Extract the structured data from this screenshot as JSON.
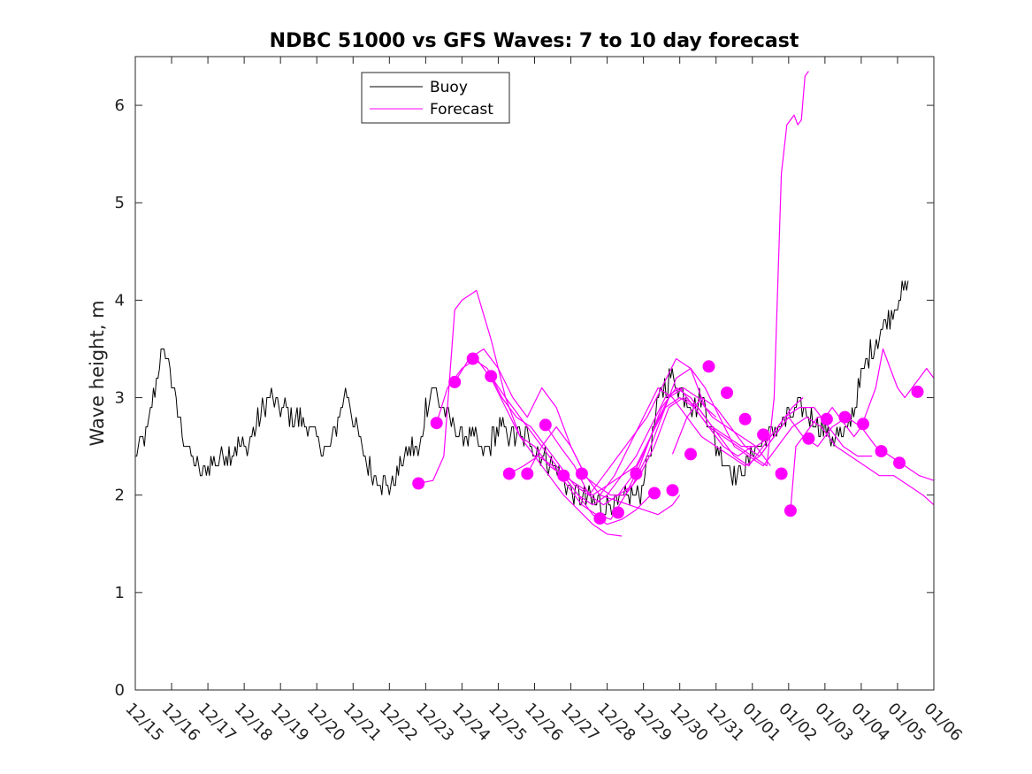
{
  "chart_data": {
    "type": "line",
    "title": "NDBC 51000 vs GFS Waves: 7 to 10 day forecast",
    "xlabel": "",
    "ylabel": "Wave height, m",
    "xlim": [
      0,
      22
    ],
    "ylim": [
      0,
      6.5
    ],
    "yticks": [
      0,
      1,
      2,
      3,
      4,
      5,
      6
    ],
    "xtick_labels": [
      "12/15",
      "12/16",
      "12/17",
      "12/18",
      "12/19",
      "12/20",
      "12/21",
      "12/22",
      "12/23",
      "12/24",
      "12/25",
      "12/26",
      "12/27",
      "12/28",
      "12/29",
      "12/30",
      "12/31",
      "01/01",
      "01/02",
      "01/03",
      "01/04",
      "01/05",
      "01/06"
    ],
    "legend": {
      "position": "top-center",
      "entries": [
        {
          "label": "Buoy",
          "color": "#000000"
        },
        {
          "label": "Forecast",
          "color": "#ff00ff"
        }
      ]
    },
    "buoy": {
      "name": "Buoy",
      "color": "#000000",
      "noise_amplitude": 0.12,
      "x": [
        0,
        0.3,
        0.5,
        0.7,
        0.85,
        1.0,
        1.2,
        1.5,
        1.8,
        2.0,
        2.4,
        2.8,
        3.1,
        3.4,
        3.7,
        4.0,
        4.4,
        4.8,
        5.1,
        5.4,
        5.6,
        5.8,
        6.0,
        6.2,
        6.4,
        6.6,
        6.9,
        7.1,
        7.4,
        7.6,
        7.8,
        8.0,
        8.2,
        8.35,
        8.5,
        8.8,
        9.0,
        9.3,
        9.6,
        10.0,
        10.4,
        10.8,
        11.2,
        11.6,
        11.9,
        12.2,
        12.5,
        12.8,
        13.2,
        13.6,
        13.9,
        14.2,
        14.5,
        14.8,
        15.0,
        15.2,
        15.4,
        15.6,
        15.8,
        16.0,
        16.2,
        16.5,
        16.8,
        17.1,
        17.4,
        17.7,
        18.0,
        18.3,
        18.6,
        18.9,
        19.2,
        19.5,
        19.8,
        20.0,
        20.3,
        20.6,
        20.9,
        21.1,
        21.3
      ],
      "y": [
        2.4,
        2.6,
        3.0,
        3.4,
        3.5,
        3.2,
        2.8,
        2.4,
        2.2,
        2.3,
        2.4,
        2.5,
        2.5,
        2.8,
        3.0,
        2.9,
        2.8,
        2.7,
        2.5,
        2.5,
        2.8,
        3.1,
        2.8,
        2.5,
        2.3,
        2.2,
        2.1,
        2.1,
        2.4,
        2.5,
        2.4,
        2.9,
        3.1,
        3.0,
        2.9,
        2.7,
        2.6,
        2.6,
        2.4,
        2.7,
        2.6,
        2.6,
        2.4,
        2.3,
        2.1,
        2.0,
        1.95,
        1.9,
        1.9,
        2.0,
        2.0,
        2.5,
        3.1,
        3.2,
        3.1,
        3.0,
        2.9,
        3.0,
        2.8,
        2.5,
        2.4,
        2.2,
        2.3,
        2.5,
        2.6,
        2.7,
        2.8,
        2.9,
        2.8,
        2.7,
        2.6,
        2.6,
        2.9,
        3.2,
        3.5,
        3.7,
        3.9,
        4.1,
        4.1
      ]
    },
    "forecast_series": [
      {
        "name": "Forecast run 1",
        "color": "#ff00ff",
        "x": [
          7.8,
          8.2,
          8.5,
          8.8,
          9.0,
          9.4,
          9.8,
          10.2,
          10.6,
          11.0,
          11.4,
          11.8,
          12.2,
          12.6,
          13.0,
          13.4
        ],
        "y": [
          2.12,
          2.15,
          2.4,
          3.9,
          4.0,
          4.1,
          3.6,
          3.0,
          2.6,
          2.4,
          2.2,
          2.0,
          1.85,
          1.7,
          1.6,
          1.58
        ]
      },
      {
        "name": "Forecast run 2",
        "color": "#ff00ff",
        "x": [
          8.3,
          8.6,
          9.0,
          9.4,
          9.8,
          10.2,
          10.6,
          11.0,
          11.4,
          11.8,
          12.2,
          12.6,
          13.0,
          13.4,
          13.8,
          14.2
        ],
        "y": [
          2.74,
          3.1,
          3.3,
          3.4,
          3.2,
          2.9,
          2.6,
          2.5,
          2.3,
          2.2,
          2.0,
          1.8,
          1.7,
          1.75,
          1.85,
          2.0
        ]
      },
      {
        "name": "Forecast run 3",
        "color": "#ff00ff",
        "x": [
          8.8,
          9.2,
          9.6,
          10.0,
          10.4,
          10.8,
          11.2,
          11.6,
          12.0,
          12.4,
          12.8,
          13.2,
          13.6,
          14.0,
          14.4,
          14.8,
          15.0
        ],
        "y": [
          3.16,
          3.4,
          3.5,
          3.3,
          3.0,
          2.8,
          3.1,
          2.9,
          2.5,
          2.2,
          2.0,
          1.95,
          1.9,
          1.85,
          1.8,
          1.9,
          2.0
        ]
      },
      {
        "name": "Forecast run 4",
        "color": "#ff00ff",
        "x": [
          9.3,
          9.7,
          10.1,
          10.5,
          10.9,
          11.3,
          11.7,
          12.1,
          12.5,
          12.9,
          13.3,
          13.7,
          14.1,
          14.5,
          14.9,
          15.3,
          15.7,
          16.0
        ],
        "y": [
          3.4,
          3.3,
          3.0,
          2.8,
          2.7,
          2.5,
          2.3,
          2.1,
          2.0,
          2.2,
          2.4,
          2.6,
          2.8,
          3.1,
          3.4,
          3.3,
          2.9,
          2.8
        ]
      },
      {
        "name": "Forecast run 5",
        "color": "#ff00ff",
        "x": [
          9.8,
          10.2,
          10.6,
          11.0,
          11.4,
          11.8,
          12.2,
          12.6,
          13.0,
          13.4,
          13.8,
          14.2,
          14.6,
          15.0,
          15.4,
          15.8,
          16.2,
          16.6,
          17.0
        ],
        "y": [
          3.22,
          3.0,
          2.8,
          2.6,
          2.4,
          2.2,
          2.1,
          2.0,
          2.1,
          2.2,
          2.3,
          2.6,
          2.9,
          3.0,
          2.9,
          2.7,
          2.5,
          2.4,
          2.5
        ]
      },
      {
        "name": "Forecast run 6",
        "color": "#ff00ff",
        "x": [
          10.3,
          10.7,
          11.1,
          11.5,
          11.9,
          12.3,
          12.7,
          13.1,
          13.5,
          13.9,
          14.3,
          14.7,
          15.1,
          15.5,
          15.9,
          16.3,
          16.7,
          17.1,
          17.5
        ],
        "y": [
          2.22,
          2.3,
          2.4,
          2.3,
          2.1,
          1.9,
          1.8,
          1.75,
          2.0,
          2.3,
          2.7,
          3.0,
          3.1,
          3.0,
          2.8,
          2.7,
          2.6,
          2.5,
          2.3
        ]
      },
      {
        "name": "Forecast run 7",
        "color": "#ff00ff",
        "x": [
          10.8,
          11.2,
          11.6,
          12.0,
          12.4,
          12.8,
          13.2,
          13.6,
          14.0,
          14.4,
          14.8,
          15.2,
          15.6,
          16.0,
          16.4,
          16.8,
          17.2,
          17.6,
          18.0
        ],
        "y": [
          2.22,
          2.5,
          2.7,
          2.5,
          2.2,
          2.0,
          2.2,
          2.5,
          2.8,
          3.1,
          3.0,
          2.8,
          2.6,
          2.5,
          2.4,
          2.3,
          2.4,
          2.6,
          2.8
        ]
      },
      {
        "name": "Forecast run 8",
        "color": "#ff00ff",
        "x": [
          11.3,
          11.7,
          12.1,
          12.5,
          12.9,
          13.3,
          13.7,
          14.1,
          14.5,
          14.9,
          15.3,
          15.7,
          16.1,
          16.5,
          16.9,
          17.3,
          17.7,
          18.1,
          18.4
        ],
        "y": [
          2.72,
          2.5,
          2.3,
          2.0,
          1.9,
          2.0,
          2.2,
          2.5,
          2.9,
          3.1,
          3.0,
          2.8,
          2.6,
          2.4,
          2.3,
          2.5,
          2.7,
          2.9,
          3.0
        ]
      },
      {
        "name": "Forecast run 9",
        "color": "#ff00ff",
        "x": [
          11.8,
          12.2,
          12.6,
          13.0,
          13.4,
          13.8,
          14.2,
          14.6,
          15.0,
          15.4,
          15.8,
          16.2,
          16.6,
          17.0,
          17.4,
          17.6,
          17.8,
          17.95,
          18.05,
          18.15,
          18.25,
          18.35,
          18.45,
          18.55
        ],
        "y": [
          2.2,
          2.0,
          1.9,
          2.0,
          2.2,
          2.4,
          2.7,
          3.0,
          3.1,
          2.9,
          2.7,
          2.6,
          2.5,
          2.4,
          2.3,
          3.0,
          5.3,
          5.8,
          5.85,
          5.9,
          5.8,
          5.85,
          6.3,
          6.35
        ]
      },
      {
        "name": "Forecast run 10",
        "color": "#ff00ff",
        "x": [
          12.3,
          12.7,
          13.1,
          13.5,
          13.9,
          14.3,
          14.7,
          15.1,
          15.5,
          15.9,
          16.3,
          16.7,
          17.1,
          17.5,
          17.9,
          18.3,
          18.7,
          19.1,
          19.5,
          19.9,
          20.3
        ],
        "y": [
          2.22,
          2.1,
          2.0,
          2.0,
          2.2,
          2.5,
          2.9,
          3.0,
          2.9,
          2.7,
          2.6,
          2.5,
          2.5,
          2.6,
          2.8,
          2.9,
          2.9,
          2.7,
          2.5,
          2.4,
          2.4
        ]
      },
      {
        "name": "Forecast run 11",
        "color": "#ff00ff",
        "x": [
          13.3,
          13.7,
          14.1,
          14.5,
          14.9,
          15.3,
          15.7,
          16.1,
          16.5,
          16.9,
          17.3,
          17.7,
          18.1,
          18.5,
          18.9,
          19.3,
          19.7,
          20.1,
          20.5,
          20.9,
          21.3,
          21.7,
          22.0
        ],
        "y": [
          2.0,
          2.1,
          2.4,
          2.8,
          3.2,
          3.3,
          3.1,
          2.8,
          2.5,
          2.4,
          2.3,
          2.5,
          2.7,
          2.8,
          2.7,
          2.5,
          2.4,
          2.3,
          2.2,
          2.2,
          2.1,
          2.0,
          1.9
        ]
      },
      {
        "name": "Forecast run 12",
        "color": "#ff00ff",
        "x": [
          14.8,
          15.2,
          15.6,
          16.0,
          16.4,
          16.8,
          17.2,
          17.6,
          18.0,
          18.4,
          18.8,
          19.2,
          19.6,
          20.0,
          20.4,
          20.8,
          21.2,
          21.6,
          22.0
        ],
        "y": [
          2.42,
          2.8,
          3.0,
          2.9,
          2.7,
          2.5,
          2.4,
          2.6,
          2.8,
          2.6,
          2.5,
          2.7,
          2.8,
          2.7,
          2.5,
          2.4,
          2.3,
          2.2,
          2.15
        ]
      },
      {
        "name": "Forecast run 13",
        "color": "#ff00ff",
        "x": [
          18.05,
          18.2,
          18.4,
          18.6,
          18.8,
          19.0,
          19.2,
          19.4,
          19.6,
          19.8,
          20.0,
          20.2,
          20.4,
          20.6,
          20.8,
          21.0,
          21.2,
          21.4,
          21.6,
          21.8,
          22.0
        ],
        "y": [
          1.84,
          2.5,
          2.6,
          2.7,
          2.8,
          2.8,
          2.9,
          2.8,
          2.7,
          2.6,
          2.7,
          2.9,
          3.1,
          3.5,
          3.3,
          3.1,
          3.0,
          3.1,
          3.2,
          3.3,
          3.2
        ]
      }
    ],
    "markers": {
      "name": "Forecast initial points",
      "color": "#ff00ff",
      "x": [
        7.8,
        8.3,
        8.8,
        9.3,
        9.8,
        10.3,
        10.8,
        11.3,
        11.8,
        12.3,
        12.8,
        13.3,
        13.8,
        14.3,
        14.8,
        15.3,
        15.8,
        16.3,
        16.8,
        17.3,
        17.8,
        18.05,
        18.55,
        19.05,
        19.55,
        20.05,
        20.55,
        21.05,
        21.55
      ],
      "y": [
        2.12,
        2.74,
        3.16,
        3.4,
        3.22,
        2.22,
        2.22,
        2.72,
        2.2,
        2.22,
        1.76,
        1.82,
        2.22,
        2.02,
        2.05,
        2.42,
        3.32,
        3.05,
        2.78,
        2.62,
        2.22,
        1.84,
        2.58,
        2.78,
        2.8,
        2.73,
        2.45,
        2.33,
        3.06
      ]
    }
  }
}
